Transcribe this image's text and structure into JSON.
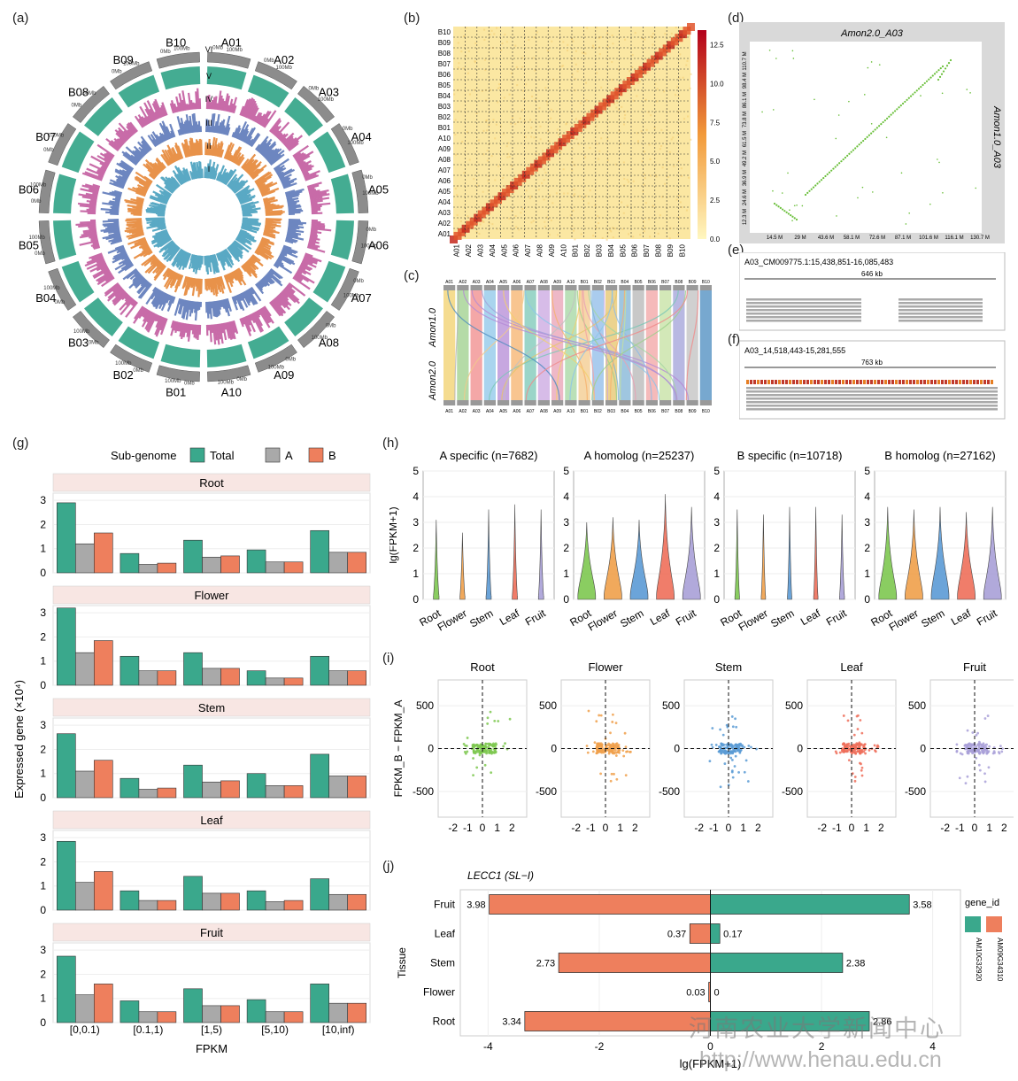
{
  "panel_letters": [
    "(a)",
    "(b)",
    "(c)",
    "(d)",
    "(e)",
    "(f)",
    "(g)",
    "(h)",
    "(i)",
    "(j)"
  ],
  "colors": {
    "total": "#3aa88c",
    "A": "#a9a9a9",
    "B": "#ee7f5d",
    "heat_low": "#fff7c0",
    "heat_high": "#b3001b",
    "green_dot": "#6abf3a"
  },
  "circos": {
    "chromosomes": [
      "A01",
      "A02",
      "A03",
      "A04",
      "A05",
      "A06",
      "A07",
      "A08",
      "A09",
      "A10",
      "B01",
      "B02",
      "B03",
      "B04",
      "B05",
      "B06",
      "B07",
      "B08",
      "B09",
      "B10"
    ],
    "ring_labels": [
      "VI",
      "V",
      "IV",
      "III",
      "II",
      "I"
    ],
    "scale_ticks": [
      "0Mb",
      "100Mb"
    ],
    "track_colors": [
      "#3aa88c",
      "#c86ba8",
      "#6d86c0",
      "#e8924a",
      "#5aa9c4"
    ]
  },
  "heatmap": {
    "labels": [
      "A01",
      "A02",
      "A03",
      "A04",
      "A05",
      "A06",
      "A07",
      "A08",
      "A09",
      "A10",
      "B01",
      "B02",
      "B03",
      "B04",
      "B05",
      "B06",
      "B07",
      "B08",
      "B09",
      "B10"
    ],
    "colorbar_ticks": [
      "0.0",
      "2.5",
      "5.0",
      "7.5",
      "10.0",
      "12.5"
    ]
  },
  "synteny": {
    "top_label": "Amon1.0",
    "bottom_label": "Amon2.0",
    "chroms": [
      "A01",
      "A02",
      "A03",
      "A04",
      "A05",
      "A06",
      "A07",
      "A08",
      "A09",
      "A10",
      "B01",
      "B02",
      "B03",
      "B04",
      "B05",
      "B06",
      "B07",
      "B08",
      "B09",
      "B10"
    ]
  },
  "dotplot": {
    "title": "Amon2.0_A03",
    "ylabel": "Amon1.0_A03",
    "xticks": [
      "14.5 M",
      "29 M",
      "43.6 M",
      "58.1 M",
      "72.6 M",
      "87.1 M",
      "101.6 M",
      "116.1 M",
      "130.7 M"
    ],
    "yticks": [
      "12.3 M",
      "24.6 M",
      "36.9 M",
      "49.2 M",
      "61.5 M",
      "73.8 M",
      "86.1 M",
      "98.4 M",
      "110.7 M"
    ]
  },
  "igv": [
    {
      "locus": "A03_CM009775.1:15,438,851-16,085,483",
      "span": "646 kb"
    },
    {
      "locus": "A03_14,518,443-15,281,555",
      "span": "763 kb"
    }
  ],
  "chart_data": [
    {
      "type": "bar",
      "title": "",
      "legend_title": "Sub-genome",
      "legend": [
        "Total",
        "A",
        "B"
      ],
      "ylabel": "Expressed gene (×10⁴)",
      "xlabel": "FPKM",
      "categories": [
        "[0,0.1)",
        "[0.1,1)",
        "[1,5)",
        "[5,10)",
        "[10,inf)"
      ],
      "ylim": [
        0,
        3.3
      ],
      "yticks": [
        0,
        1,
        2,
        3
      ],
      "facets": [
        {
          "name": "Root",
          "total": [
            2.9,
            0.8,
            1.35,
            0.95,
            1.75
          ],
          "A": [
            1.2,
            0.35,
            0.65,
            0.45,
            0.85
          ],
          "B": [
            1.65,
            0.4,
            0.7,
            0.45,
            0.85
          ]
        },
        {
          "name": "Flower",
          "total": [
            3.2,
            1.2,
            1.35,
            0.6,
            1.2
          ],
          "A": [
            1.35,
            0.6,
            0.7,
            0.3,
            0.6
          ],
          "B": [
            1.85,
            0.6,
            0.7,
            0.3,
            0.6
          ]
        },
        {
          "name": "Stem",
          "total": [
            2.65,
            0.8,
            1.35,
            1.0,
            1.8
          ],
          "A": [
            1.1,
            0.35,
            0.65,
            0.5,
            0.9
          ],
          "B": [
            1.55,
            0.4,
            0.7,
            0.5,
            0.9
          ]
        },
        {
          "name": "Leaf",
          "total": [
            2.85,
            0.8,
            1.4,
            0.8,
            1.3
          ],
          "A": [
            1.15,
            0.4,
            0.7,
            0.35,
            0.65
          ],
          "B": [
            1.6,
            0.4,
            0.7,
            0.4,
            0.65
          ]
        },
        {
          "name": "Fruit",
          "total": [
            2.75,
            0.9,
            1.4,
            0.95,
            1.6
          ],
          "A": [
            1.15,
            0.45,
            0.7,
            0.45,
            0.8
          ],
          "B": [
            1.6,
            0.45,
            0.7,
            0.45,
            0.8
          ]
        }
      ]
    },
    {
      "type": "violin",
      "ylabel": "lg(FPKM+1)",
      "ylim": [
        0,
        5
      ],
      "yticks": [
        0,
        1,
        2,
        3,
        4,
        5
      ],
      "categories": [
        "Root",
        "Flower",
        "Stem",
        "Leaf",
        "Fruit"
      ],
      "category_colors": [
        "#7ec850",
        "#f0a04b",
        "#5b9bd5",
        "#ef6f5a",
        "#a9a0d8"
      ],
      "panels": [
        {
          "title": "A specific (n=7682)",
          "max": [
            3.1,
            2.6,
            3.5,
            3.7,
            3.5
          ],
          "spread": [
            0.15,
            0.1,
            0.12,
            0.12,
            0.12
          ]
        },
        {
          "title": "A homolog (n=25237)",
          "max": [
            3.0,
            3.2,
            3.1,
            4.1,
            3.6
          ],
          "spread": [
            1.0,
            1.0,
            1.0,
            1.1,
            1.0
          ]
        },
        {
          "title": "B specific (n=10718)",
          "max": [
            3.5,
            3.3,
            3.6,
            3.6,
            3.3
          ],
          "spread": [
            0.08,
            0.06,
            0.06,
            0.06,
            0.1
          ]
        },
        {
          "title": "B homolog (n=27162)",
          "max": [
            3.6,
            3.5,
            3.6,
            3.4,
            3.6
          ],
          "spread": [
            1.0,
            1.0,
            1.2,
            1.1,
            1.0
          ]
        }
      ]
    },
    {
      "type": "scatter",
      "ylabel": "FPKM_B − FPKM_A",
      "xticks": [
        -2,
        -1,
        0,
        1,
        2
      ],
      "yticks": [
        -500,
        0,
        500
      ],
      "xlim": [
        -3,
        3
      ],
      "ylim": [
        -800,
        800
      ],
      "panels": [
        {
          "title": "Root",
          "color": "#7ec850"
        },
        {
          "title": "Flower",
          "color": "#f0a04b"
        },
        {
          "title": "Stem",
          "color": "#5b9bd5"
        },
        {
          "title": "Leaf",
          "color": "#ef6f5a"
        },
        {
          "title": "Fruit",
          "color": "#a9a0d8"
        }
      ]
    },
    {
      "type": "bar",
      "orientation": "horizontal",
      "title": "LECC1 (SL−I)",
      "ylabel": "Tissue",
      "xlabel": "lg(FPKM+1)",
      "xlim": [
        -4.5,
        4.5
      ],
      "xticks": [
        -4,
        -2,
        0,
        2,
        4
      ],
      "legend_title": "gene_id",
      "legend": [
        "AM10G32920",
        "AM09G34310"
      ],
      "categories": [
        "Fruit",
        "Leaf",
        "Stem",
        "Flower",
        "Root"
      ],
      "series": [
        {
          "name": "AM09G34310",
          "values": [
            -3.98,
            -0.37,
            -2.73,
            -0.03,
            -3.34
          ],
          "labels": [
            "3.98",
            "0.37",
            "2.73",
            "0.03",
            "3.34"
          ]
        },
        {
          "name": "AM10G32920",
          "values": [
            3.58,
            0.17,
            2.38,
            0,
            2.86
          ],
          "labels": [
            "3.58",
            "0.17",
            "2.38",
            "0",
            "2.86"
          ]
        }
      ]
    }
  ],
  "watermark": {
    "cn": "河南农业大学新闻中心",
    "url": "http://www.henau.edu.cn"
  }
}
